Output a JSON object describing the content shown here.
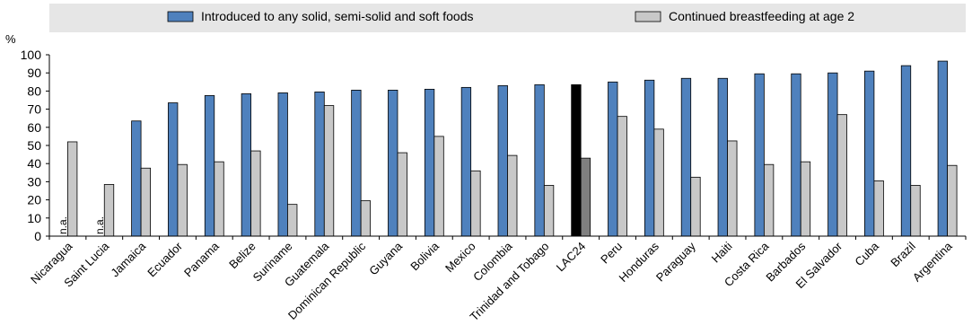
{
  "chart_data": {
    "type": "bar",
    "ylabel": "%",
    "ylim": [
      0,
      100
    ],
    "yticks": [
      0,
      10,
      20,
      30,
      40,
      50,
      60,
      70,
      80,
      90,
      100
    ],
    "grid": false,
    "legend_position": "top",
    "categories": [
      "Nicaragua",
      "Saint Lucia",
      "Jamaica",
      "Ecuador",
      "Panama",
      "Belize",
      "Suriname",
      "Guatemala",
      "Dominican Republic",
      "Guyana",
      "Bolivia",
      "Mexico",
      "Colombia",
      "Trinidad and Tobago",
      "LAC24",
      "Peru",
      "Honduras",
      "Paraguay",
      "Haiti",
      "Costa Rica",
      "Barbados",
      "El Salvador",
      "Cuba",
      "Brazil",
      "Argentina"
    ],
    "series": [
      {
        "name": "Introduced to any solid, semi-solid and soft foods",
        "color": "#4f81bd",
        "highlight_color": "#000000",
        "values": [
          null,
          null,
          63.5,
          73.5,
          77.5,
          78.5,
          79,
          79.5,
          80.5,
          80.5,
          81,
          82,
          83,
          83.5,
          83.5,
          85,
          86,
          87,
          87,
          89.5,
          89.5,
          90,
          91,
          94,
          96.5
        ]
      },
      {
        "name": "Continued breastfeeding at age 2",
        "color": "#c8c8c8",
        "highlight_color": "#808080",
        "values": [
          52,
          28.5,
          37.5,
          39.5,
          41,
          47,
          17.5,
          72,
          19.5,
          46,
          55,
          36,
          44.5,
          28,
          43,
          66,
          59,
          32.5,
          52.5,
          39.5,
          41,
          67,
          30.5,
          28,
          39
        ]
      }
    ],
    "highlight_category": "LAC24",
    "annotations": [
      {
        "category": "Nicaragua",
        "text": "n.a."
      },
      {
        "category": "Saint Lucia",
        "text": "n.a."
      }
    ]
  }
}
